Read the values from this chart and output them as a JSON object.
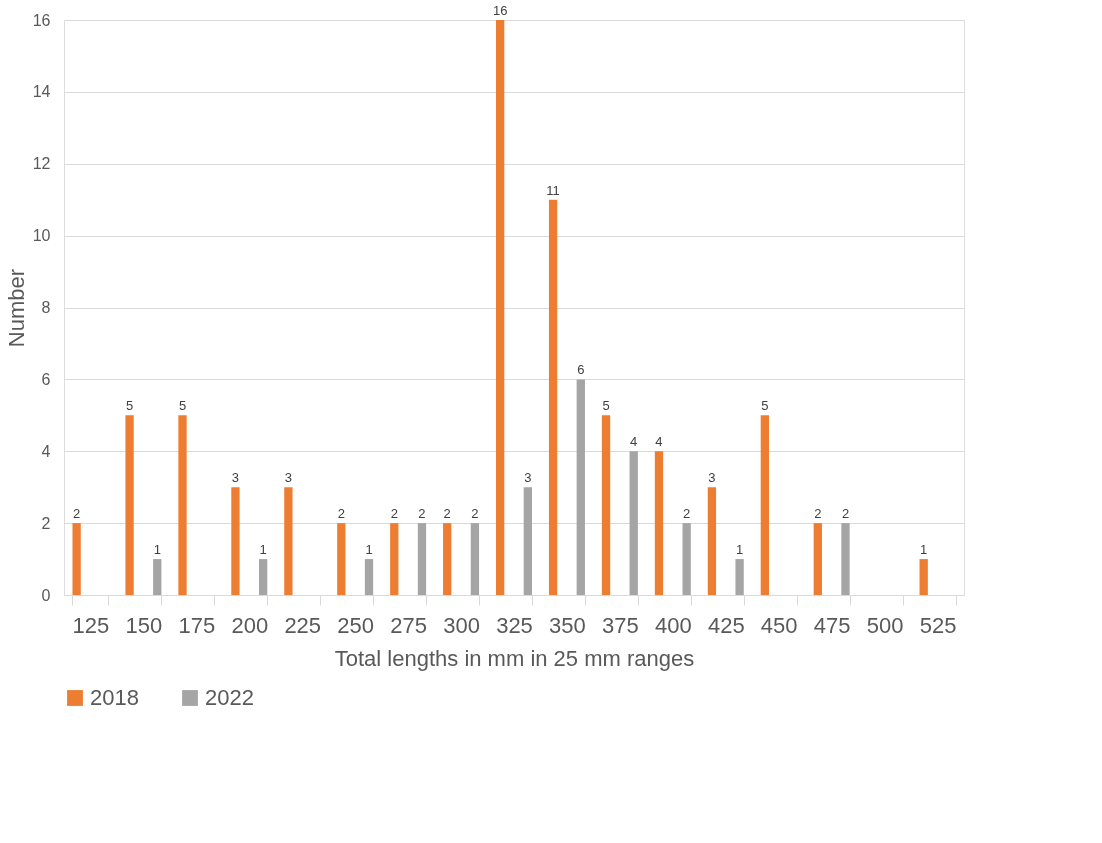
{
  "chart_data": {
    "type": "bar",
    "xlabel": "Total lengths in mm in 25 mm ranges",
    "ylabel": "Number",
    "categories": [
      "125",
      "150",
      "175",
      "200",
      "225",
      "250",
      "275",
      "300",
      "325",
      "350",
      "375",
      "400",
      "425",
      "450",
      "475",
      "500",
      "525"
    ],
    "series": [
      {
        "name": "2018",
        "color": "#ed7d31",
        "values": [
          2,
          5,
          5,
          3,
          3,
          2,
          2,
          2,
          16,
          11,
          5,
          4,
          3,
          5,
          2,
          null,
          1
        ]
      },
      {
        "name": "2022",
        "color": "#a5a5a5",
        "values": [
          null,
          1,
          null,
          1,
          null,
          1,
          2,
          2,
          3,
          6,
          4,
          2,
          1,
          null,
          2,
          null,
          null
        ]
      }
    ],
    "ylim": [
      0,
      16
    ],
    "yticks": [
      0,
      2,
      4,
      6,
      8,
      10,
      12,
      14,
      16
    ],
    "grid": "y",
    "legend": "bottom",
    "data_labels": true
  }
}
